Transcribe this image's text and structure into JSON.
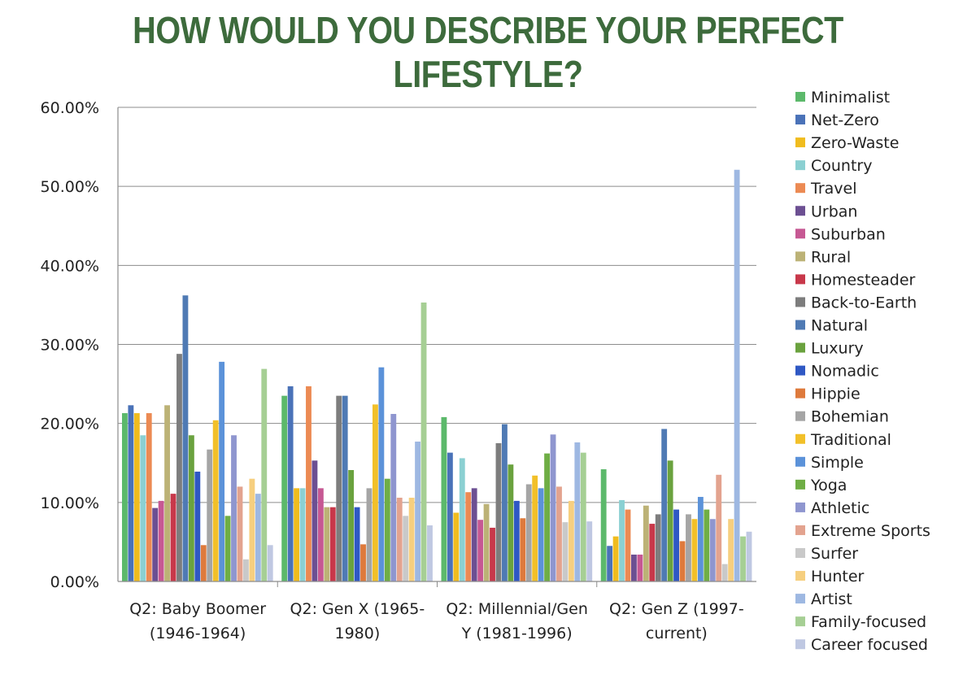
{
  "chart_data": {
    "type": "bar",
    "title": "HOW WOULD YOU DESCRIBE YOUR PERFECT LIFESTYLE?",
    "title_color": "#3d6b3c",
    "categories": [
      [
        "Q2: Baby Boomer",
        "(1946-1964)"
      ],
      [
        "Q2: Gen X (1965-",
        "1980)"
      ],
      [
        "Q2: Millennial/Gen",
        "Y (1981-1996)"
      ],
      [
        "Q2: Gen Z (1997-",
        "current)"
      ]
    ],
    "ylim": [
      0,
      60
    ],
    "yticks": [
      "0.00%",
      "10.00%",
      "20.00%",
      "30.00%",
      "40.00%",
      "50.00%",
      "60.00%"
    ],
    "legend_position": "right",
    "grid": true,
    "series": [
      {
        "name": "Minimalist",
        "color": "#5cb96b",
        "values": [
          21.3,
          23.5,
          20.8,
          14.2
        ]
      },
      {
        "name": "Net-Zero",
        "color": "#4a72b8",
        "values": [
          22.3,
          24.7,
          16.3,
          4.5
        ]
      },
      {
        "name": "Zero-Waste",
        "color": "#f0bc1e",
        "values": [
          21.3,
          11.8,
          8.7,
          5.7
        ]
      },
      {
        "name": "Country",
        "color": "#8bd0d2",
        "values": [
          18.5,
          11.8,
          15.6,
          10.3
        ]
      },
      {
        "name": "Travel",
        "color": "#ec8a53",
        "values": [
          21.3,
          24.7,
          11.3,
          9.1
        ]
      },
      {
        "name": "Urban",
        "color": "#6c4f92",
        "values": [
          9.3,
          15.3,
          11.8,
          3.4
        ]
      },
      {
        "name": "Suburban",
        "color": "#c65893",
        "values": [
          10.2,
          11.8,
          7.8,
          3.4
        ]
      },
      {
        "name": "Rural",
        "color": "#bcb276",
        "values": [
          22.3,
          9.4,
          9.8,
          9.6
        ]
      },
      {
        "name": "Homesteader",
        "color": "#c8384a",
        "values": [
          11.1,
          9.4,
          6.8,
          7.3
        ]
      },
      {
        "name": "Back-to-Earth",
        "color": "#7d7d7d",
        "values": [
          28.8,
          23.5,
          17.5,
          8.5
        ]
      },
      {
        "name": "Natural",
        "color": "#4f7ab4",
        "values": [
          36.2,
          23.5,
          19.9,
          19.3
        ]
      },
      {
        "name": "Luxury",
        "color": "#6aa23e",
        "values": [
          18.5,
          14.1,
          14.8,
          15.3
        ]
      },
      {
        "name": "Nomadic",
        "color": "#2f58c4",
        "values": [
          13.9,
          9.4,
          10.2,
          9.1
        ]
      },
      {
        "name": "Hippie",
        "color": "#de7a3c",
        "values": [
          4.6,
          4.7,
          8.0,
          5.1
        ]
      },
      {
        "name": "Bohemian",
        "color": "#a5a5a5",
        "values": [
          16.7,
          11.8,
          12.3,
          8.5
        ]
      },
      {
        "name": "Traditional",
        "color": "#f2c029",
        "values": [
          20.4,
          22.4,
          13.4,
          7.9
        ]
      },
      {
        "name": "Simple",
        "color": "#5b92d9",
        "values": [
          27.8,
          27.1,
          11.8,
          10.7
        ]
      },
      {
        "name": "Yoga",
        "color": "#6fae45",
        "values": [
          8.3,
          13.0,
          16.2,
          9.1
        ]
      },
      {
        "name": "Athletic",
        "color": "#8f96cf",
        "values": [
          18.5,
          21.2,
          18.6,
          7.9
        ]
      },
      {
        "name": "Extreme Sports",
        "color": "#e3a38f",
        "values": [
          12.0,
          10.6,
          12.0,
          13.5
        ]
      },
      {
        "name": "Surfer",
        "color": "#c9c9c9",
        "values": [
          2.8,
          8.3,
          7.5,
          2.2
        ]
      },
      {
        "name": "Hunter",
        "color": "#f6cf7f",
        "values": [
          13.0,
          10.6,
          10.2,
          7.9
        ]
      },
      {
        "name": "Artist",
        "color": "#9eb8e2",
        "values": [
          11.1,
          17.7,
          17.6,
          52.1
        ]
      },
      {
        "name": "Family-focused",
        "color": "#a6cf94",
        "values": [
          26.9,
          35.3,
          16.3,
          5.7
        ]
      },
      {
        "name": "Career focused",
        "color": "#bfc8e2",
        "values": [
          4.6,
          7.1,
          7.6,
          6.3
        ]
      }
    ]
  }
}
